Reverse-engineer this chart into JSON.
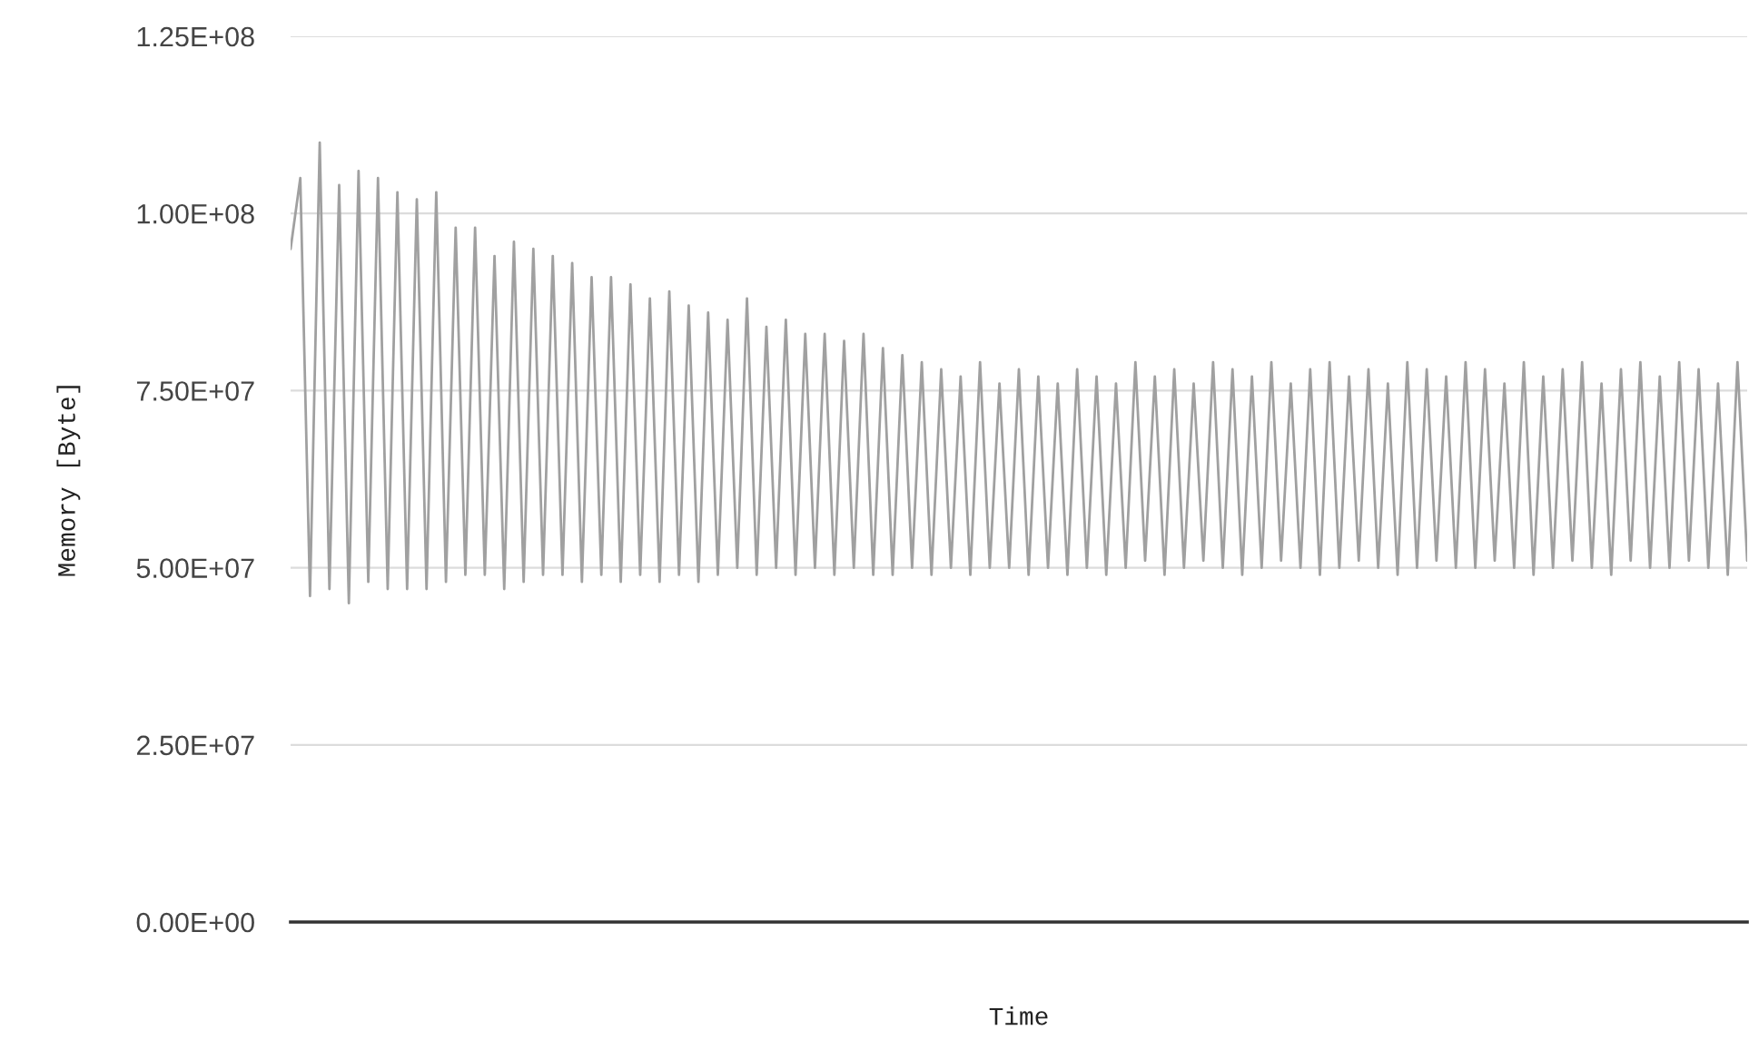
{
  "chart_data": {
    "type": "line",
    "xlabel": "Time",
    "ylabel": "Memory [Byte]",
    "categories": [
      null,
      null,
      null,
      null,
      null,
      null,
      null,
      null,
      null,
      null,
      null,
      null,
      null,
      null,
      null,
      null,
      null,
      null,
      null,
      null,
      null,
      null,
      null,
      null,
      null,
      null,
      null,
      null,
      null,
      null,
      null,
      null,
      null,
      null,
      null,
      null,
      null,
      null,
      null,
      null,
      null,
      null,
      null,
      null,
      null,
      null,
      null,
      null,
      null,
      null,
      null,
      null,
      null,
      null,
      null,
      null,
      null,
      null,
      null,
      null,
      null,
      null,
      null,
      null,
      null,
      null,
      null,
      null,
      null,
      null,
      null,
      null,
      null,
      null,
      null,
      null,
      null,
      null,
      null,
      null,
      null,
      null,
      null,
      null,
      null,
      null,
      null,
      null,
      null,
      null,
      null,
      null,
      null,
      null,
      null,
      null,
      null,
      null,
      null,
      null,
      null,
      null,
      null,
      null,
      null,
      null,
      null,
      null,
      null,
      null,
      null,
      null,
      null,
      null,
      null,
      null,
      null,
      null,
      null,
      null,
      null,
      null,
      null,
      null,
      null,
      null,
      null,
      null,
      null,
      null,
      null,
      null,
      null,
      null,
      null,
      null,
      null,
      null,
      null,
      null,
      null,
      null,
      null,
      null,
      null,
      null,
      null,
      null,
      null,
      null,
      null
    ],
    "series": [
      {
        "color": "#a0a0a0",
        "values": [
          95000000.0,
          105000000.0,
          46000000.0,
          110000000.0,
          47000000.0,
          104000000.0,
          45000000.0,
          106000000.0,
          48000000.0,
          105000000.0,
          47000000.0,
          103000000.0,
          47000000.0,
          102000000.0,
          47000000.0,
          103000000.0,
          48000000.0,
          98000000.0,
          49000000.0,
          98000000.0,
          49000000.0,
          94000000.0,
          47000000.0,
          96000000.0,
          48000000.0,
          95000000.0,
          49000000.0,
          94000000.0,
          49000000.0,
          93000000.0,
          48000000.0,
          91000000.0,
          49000000.0,
          91000000.0,
          48000000.0,
          90000000.0,
          49000000.0,
          88000000.0,
          48000000.0,
          89000000.0,
          49000000.0,
          87000000.0,
          48000000.0,
          86000000.0,
          49000000.0,
          85000000.0,
          50000000.0,
          88000000.0,
          49000000.0,
          84000000.0,
          50000000.0,
          85000000.0,
          49000000.0,
          83000000.0,
          50000000.0,
          83000000.0,
          49000000.0,
          82000000.0,
          50000000.0,
          83000000.0,
          49000000.0,
          81000000.0,
          49000000.0,
          80000000.0,
          50000000.0,
          79000000.0,
          49000000.0,
          78000000.0,
          50000000.0,
          77000000.0,
          49000000.0,
          79000000.0,
          50000000.0,
          76000000.0,
          50000000.0,
          78000000.0,
          49000000.0,
          77000000.0,
          50000000.0,
          76000000.0,
          49000000.0,
          78000000.0,
          50000000.0,
          77000000.0,
          49000000.0,
          76000000.0,
          50000000.0,
          79000000.0,
          51000000.0,
          77000000.0,
          49000000.0,
          78000000.0,
          50000000.0,
          76000000.0,
          51000000.0,
          79000000.0,
          50000000.0,
          78000000.0,
          49000000.0,
          77000000.0,
          50000000.0,
          79000000.0,
          51000000.0,
          76000000.0,
          50000000.0,
          78000000.0,
          49000000.0,
          79000000.0,
          50000000.0,
          77000000.0,
          51000000.0,
          78000000.0,
          50000000.0,
          76000000.0,
          49000000.0,
          79000000.0,
          50000000.0,
          78000000.0,
          51000000.0,
          77000000.0,
          50000000.0,
          79000000.0,
          50000000.0,
          78000000.0,
          51000000.0,
          76000000.0,
          50000000.0,
          79000000.0,
          49000000.0,
          77000000.0,
          50000000.0,
          78000000.0,
          51000000.0,
          79000000.0,
          50000000.0,
          76000000.0,
          49000000.0,
          78000000.0,
          51000000.0,
          79000000.0,
          50000000.0,
          77000000.0,
          50000000.0,
          79000000.0,
          51000000.0,
          78000000.0,
          50000000.0,
          76000000.0,
          49000000.0,
          79000000.0,
          51000000.0
        ]
      }
    ],
    "ylim": [
      0,
      125000000.0
    ],
    "yticks": [
      {
        "value": 0,
        "label": "0.00E+00"
      },
      {
        "value": 25000000.0,
        "label": "2.50E+07"
      },
      {
        "value": 50000000.0,
        "label": "5.00E+07"
      },
      {
        "value": 75000000.0,
        "label": "7.50E+07"
      },
      {
        "value": 100000000.0,
        "label": "1.00E+08"
      },
      {
        "value": 125000000.0,
        "label": "1.25E+08"
      }
    ],
    "grid": "y",
    "tick_labels": "y",
    "marker": "none",
    "line_style": "solid"
  }
}
